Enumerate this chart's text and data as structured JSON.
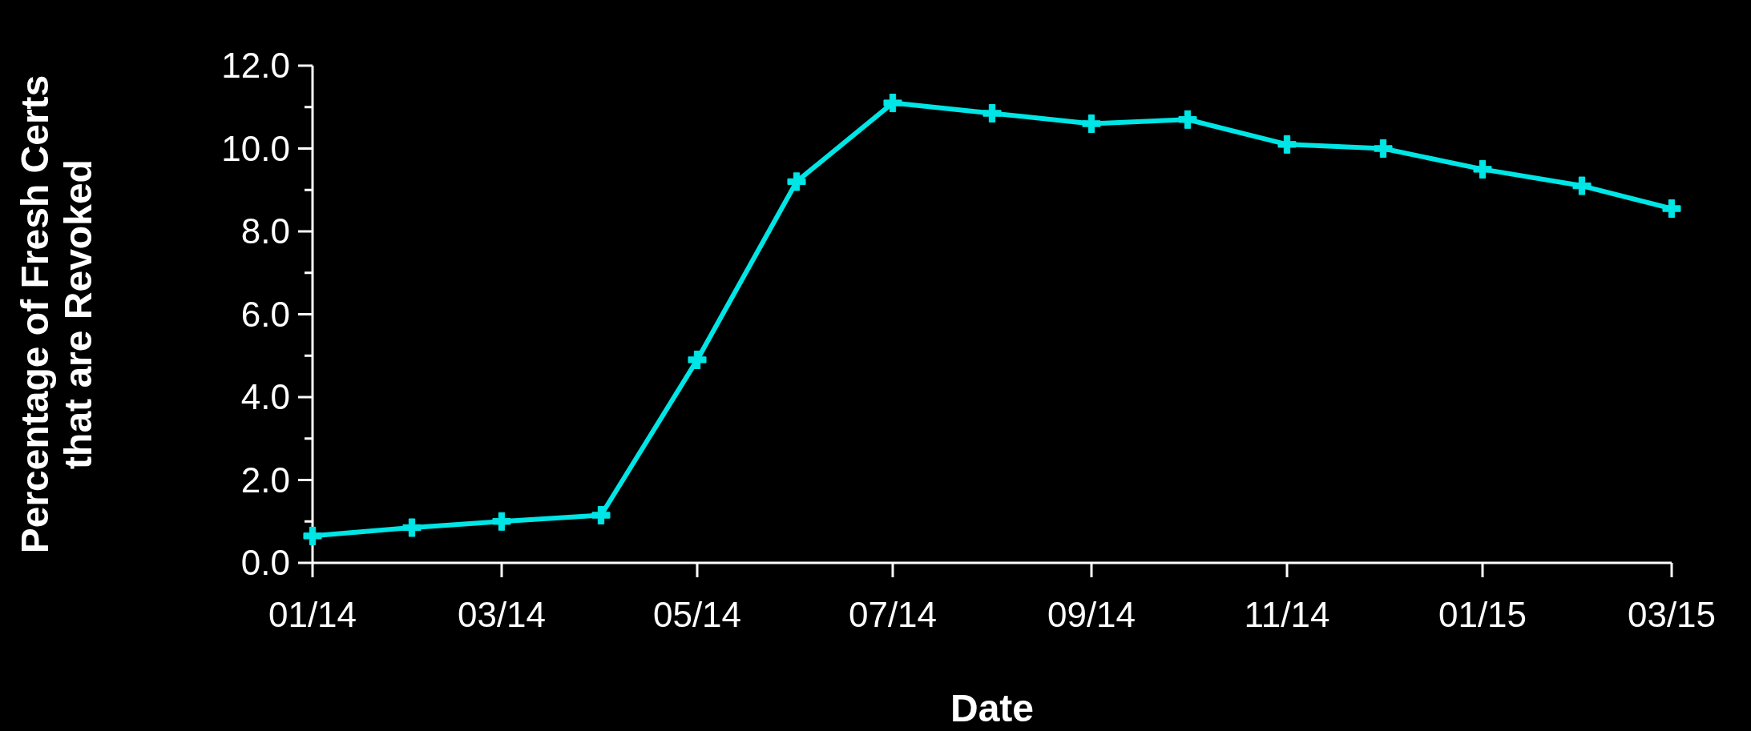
{
  "chart_data": {
    "type": "line",
    "xlabel": "Date",
    "ylabel": "Percentage of Fresh Certs\nthat are Revoked",
    "x": [
      "2014-01",
      "2014-02",
      "2014-03",
      "2014-04",
      "2014-05",
      "2014-06",
      "2014-07",
      "2014-08",
      "2014-09",
      "2014-10",
      "2014-11",
      "2014-12",
      "2015-01",
      "2015-02",
      "2015-03"
    ],
    "series": [
      {
        "color": "#00e5e5",
        "values": [
          0.65,
          0.85,
          1.0,
          1.15,
          4.9,
          9.2,
          11.1,
          10.85,
          10.6,
          10.7,
          10.1,
          10.0,
          9.5,
          9.1,
          8.55
        ]
      }
    ],
    "xlim": [
      "2014-01",
      "2015-03"
    ],
    "xticks": [
      {
        "value": "2014-01",
        "label": "01/14"
      },
      {
        "value": "2014-03",
        "label": "03/14"
      },
      {
        "value": "2014-05",
        "label": "05/14"
      },
      {
        "value": "2014-07",
        "label": "07/14"
      },
      {
        "value": "2014-09",
        "label": "09/14"
      },
      {
        "value": "2014-11",
        "label": "11/14"
      },
      {
        "value": "2015-01",
        "label": "01/15"
      },
      {
        "value": "2015-03",
        "label": "03/15"
      }
    ],
    "ylim": [
      0,
      12
    ],
    "yticks": [
      {
        "value": 0,
        "label": "0.0"
      },
      {
        "value": 1,
        "label": null
      },
      {
        "value": 2,
        "label": "2.0"
      },
      {
        "value": 3,
        "label": null
      },
      {
        "value": 4,
        "label": "4.0"
      },
      {
        "value": 5,
        "label": null
      },
      {
        "value": 6,
        "label": "6.0"
      },
      {
        "value": 7,
        "label": null
      },
      {
        "value": 8,
        "label": "8.0"
      },
      {
        "value": 9,
        "label": null
      },
      {
        "value": 10,
        "label": "10.0"
      },
      {
        "value": 11,
        "label": null
      },
      {
        "value": 12,
        "label": "12.0"
      }
    ],
    "marker": "cross",
    "line_style": "solid",
    "grid": false
  }
}
